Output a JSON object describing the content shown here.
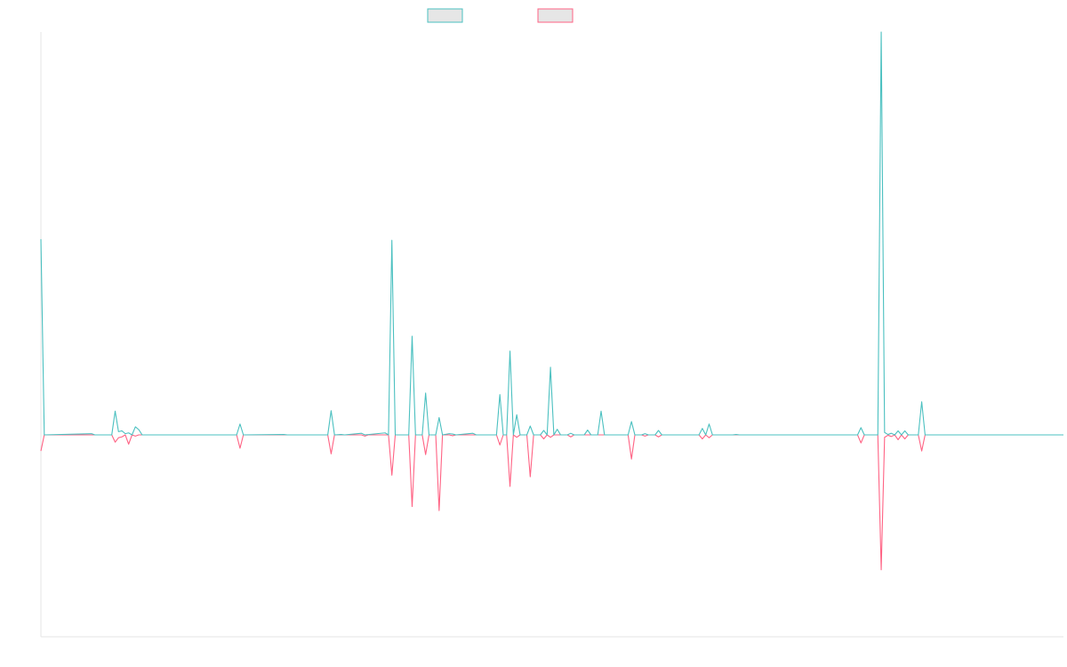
{
  "chart_data": {
    "type": "line",
    "title": "",
    "xlabel": "",
    "ylabel": "",
    "x_count": 304,
    "ylim": [
      -1,
      1
    ],
    "grid": false,
    "legend_position": "top-center",
    "baseline": 0,
    "series": [
      {
        "name": "",
        "color": "#4bc0c0",
        "fill": "#e6e6e6",
        "points": [
          [
            0,
            0.486
          ],
          [
            1,
            0
          ],
          [
            15,
            0.003
          ],
          [
            16,
            0
          ],
          [
            21,
            0
          ],
          [
            22,
            0.059
          ],
          [
            23,
            0.008
          ],
          [
            24,
            0.01
          ],
          [
            25,
            0.003
          ],
          [
            26,
            0.005
          ],
          [
            27,
            0
          ],
          [
            28,
            0.02
          ],
          [
            29,
            0.013
          ],
          [
            30,
            0
          ],
          [
            58,
            0
          ],
          [
            59,
            0.027
          ],
          [
            60,
            0
          ],
          [
            72,
            0.001
          ],
          [
            73,
            0
          ],
          [
            85,
            0
          ],
          [
            86,
            0.06
          ],
          [
            87,
            0
          ],
          [
            89,
            0.001
          ],
          [
            90,
            0
          ],
          [
            95,
            0.004
          ],
          [
            96,
            0
          ],
          [
            102,
            0.005
          ],
          [
            103,
            0
          ],
          [
            103,
            0
          ],
          [
            104,
            0.483
          ],
          [
            105,
            0
          ],
          [
            109,
            0
          ],
          [
            110,
            0.245
          ],
          [
            111,
            0
          ],
          [
            113,
            0
          ],
          [
            114,
            0.104
          ],
          [
            115,
            0
          ],
          [
            117,
            0
          ],
          [
            118,
            0.043
          ],
          [
            119,
            0
          ],
          [
            121,
            0.003
          ],
          [
            122,
            0.002
          ],
          [
            123,
            0
          ],
          [
            128,
            0.004
          ],
          [
            129,
            0
          ],
          [
            135,
            0
          ],
          [
            136,
            0.1
          ],
          [
            137,
            0
          ],
          [
            138,
            0
          ],
          [
            139,
            0.208
          ],
          [
            140,
            0
          ],
          [
            141,
            0.05
          ],
          [
            142,
            0
          ],
          [
            144,
            0
          ],
          [
            145,
            0.022
          ],
          [
            146,
            0
          ],
          [
            148,
            0
          ],
          [
            149,
            0.011
          ],
          [
            150,
            0
          ],
          [
            151,
            0.168
          ],
          [
            152,
            0
          ],
          [
            153,
            0.014
          ],
          [
            154,
            0
          ],
          [
            156,
            0
          ],
          [
            157,
            0.004
          ],
          [
            158,
            0
          ],
          [
            161,
            0
          ],
          [
            162,
            0.012
          ],
          [
            163,
            0
          ],
          [
            165,
            0
          ],
          [
            166,
            0.059
          ],
          [
            167,
            0
          ],
          [
            174,
            0
          ],
          [
            175,
            0.033
          ],
          [
            176,
            0
          ],
          [
            178,
            0
          ],
          [
            179,
            0.003
          ],
          [
            180,
            0
          ],
          [
            182,
            0
          ],
          [
            183,
            0.011
          ],
          [
            184,
            0
          ],
          [
            195,
            0
          ],
          [
            196,
            0.016
          ],
          [
            197,
            0
          ],
          [
            198,
            0.027
          ],
          [
            199,
            0
          ],
          [
            205,
            0
          ],
          [
            206,
            0.001
          ],
          [
            207,
            0
          ],
          [
            242,
            0
          ],
          [
            243,
            0.018
          ],
          [
            244,
            0
          ],
          [
            248,
            0
          ],
          [
            249,
            1.0
          ],
          [
            250,
            0.006
          ],
          [
            251,
            0.001
          ],
          [
            252,
            0.004
          ],
          [
            253,
            0
          ],
          [
            254,
            0.01
          ],
          [
            255,
            0
          ],
          [
            256,
            0.01
          ],
          [
            257,
            0
          ],
          [
            260,
            0
          ],
          [
            261,
            0.082
          ],
          [
            262,
            0
          ],
          [
            303,
            0
          ]
        ]
      },
      {
        "name": "",
        "color": "#ff6384",
        "fill": "#e6e6e6",
        "points": [
          [
            0,
            -0.04
          ],
          [
            1,
            0
          ],
          [
            21,
            0
          ],
          [
            22,
            -0.018
          ],
          [
            23,
            -0.007
          ],
          [
            24,
            -0.005
          ],
          [
            25,
            0
          ],
          [
            26,
            -0.023
          ],
          [
            27,
            0
          ],
          [
            28,
            -0.003
          ],
          [
            29,
            0
          ],
          [
            58,
            0
          ],
          [
            59,
            -0.033
          ],
          [
            60,
            0
          ],
          [
            85,
            0
          ],
          [
            86,
            -0.047
          ],
          [
            87,
            0
          ],
          [
            95,
            0
          ],
          [
            96,
            -0.003
          ],
          [
            97,
            0
          ],
          [
            103,
            0
          ],
          [
            104,
            -0.1
          ],
          [
            105,
            0
          ],
          [
            109,
            0
          ],
          [
            110,
            -0.178
          ],
          [
            111,
            0
          ],
          [
            113,
            0
          ],
          [
            114,
            -0.049
          ],
          [
            115,
            0
          ],
          [
            117,
            0
          ],
          [
            118,
            -0.188
          ],
          [
            119,
            0
          ],
          [
            121,
            0
          ],
          [
            122,
            -0.002
          ],
          [
            123,
            0
          ],
          [
            135,
            0
          ],
          [
            136,
            -0.025
          ],
          [
            137,
            0
          ],
          [
            138,
            0
          ],
          [
            139,
            -0.128
          ],
          [
            140,
            0
          ],
          [
            141,
            -0.006
          ],
          [
            142,
            0
          ],
          [
            144,
            0
          ],
          [
            145,
            -0.104
          ],
          [
            146,
            0
          ],
          [
            148,
            0
          ],
          [
            149,
            -0.01
          ],
          [
            150,
            0
          ],
          [
            151,
            -0.006
          ],
          [
            152,
            0
          ],
          [
            156,
            0
          ],
          [
            157,
            -0.005
          ],
          [
            158,
            0
          ],
          [
            174,
            0
          ],
          [
            175,
            -0.06
          ],
          [
            176,
            0
          ],
          [
            178,
            0
          ],
          [
            179,
            -0.003
          ],
          [
            180,
            0
          ],
          [
            182,
            0
          ],
          [
            183,
            -0.005
          ],
          [
            184,
            0
          ],
          [
            195,
            0
          ],
          [
            196,
            -0.01
          ],
          [
            197,
            0
          ],
          [
            198,
            -0.007
          ],
          [
            199,
            0
          ],
          [
            242,
            0
          ],
          [
            243,
            -0.02
          ],
          [
            244,
            0
          ],
          [
            248,
            0
          ],
          [
            249,
            -0.335
          ],
          [
            250,
            -0.006
          ],
          [
            251,
            -0.001
          ],
          [
            252,
            -0.004
          ],
          [
            253,
            0
          ],
          [
            254,
            -0.012
          ],
          [
            255,
            0
          ],
          [
            256,
            -0.01
          ],
          [
            257,
            0
          ],
          [
            260,
            0
          ],
          [
            261,
            -0.04
          ],
          [
            262,
            0
          ],
          [
            303,
            0
          ]
        ]
      }
    ]
  }
}
